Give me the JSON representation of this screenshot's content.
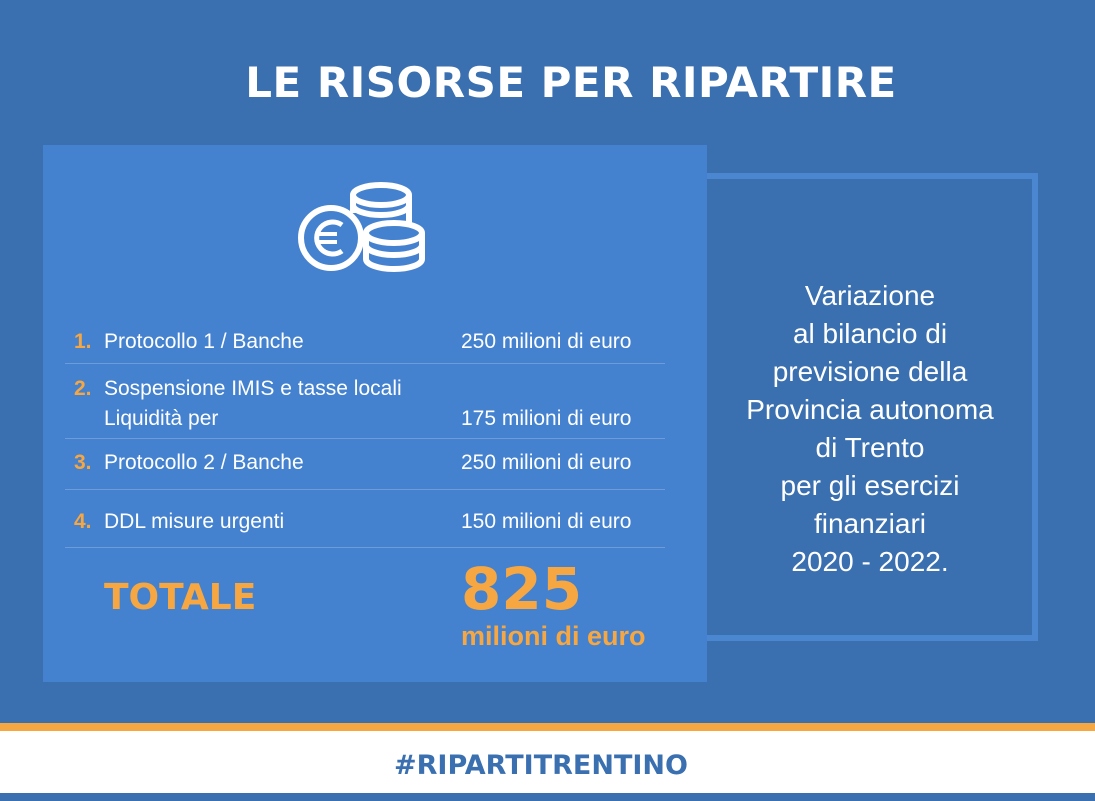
{
  "title": "LE RISORSE PER RIPARTIRE",
  "items": [
    {
      "num": "1.",
      "label": "Protocollo 1 / Banche",
      "amount": "250 milioni di euro"
    },
    {
      "num": "2.",
      "label": "Sospensione IMIS e tasse locali",
      "label2": "Liquidità per",
      "amount": "175 milioni di euro"
    },
    {
      "num": "3.",
      "label": "Protocollo 2 / Banche",
      "amount": "250 milioni di euro"
    },
    {
      "num": "4.",
      "label": "DDL misure urgenti",
      "amount": "150 milioni di euro"
    }
  ],
  "total": {
    "label": "TOTALE",
    "value": "825",
    "unit": "milioni di euro"
  },
  "side_text": [
    "Variazione",
    "al bilancio di",
    "previsione della",
    "Provincia autonoma",
    "di Trento",
    "per gli esercizi",
    "finanziari",
    "2020 - 2022."
  ],
  "footer": {
    "hashtag": "#RIPARTITRENTINO"
  },
  "colors": {
    "background": "#3a6fb0",
    "card": "#4482d0",
    "accent": "#f6a742",
    "text": "#ffffff"
  },
  "icons": {
    "coins": "euro-coins-icon"
  }
}
